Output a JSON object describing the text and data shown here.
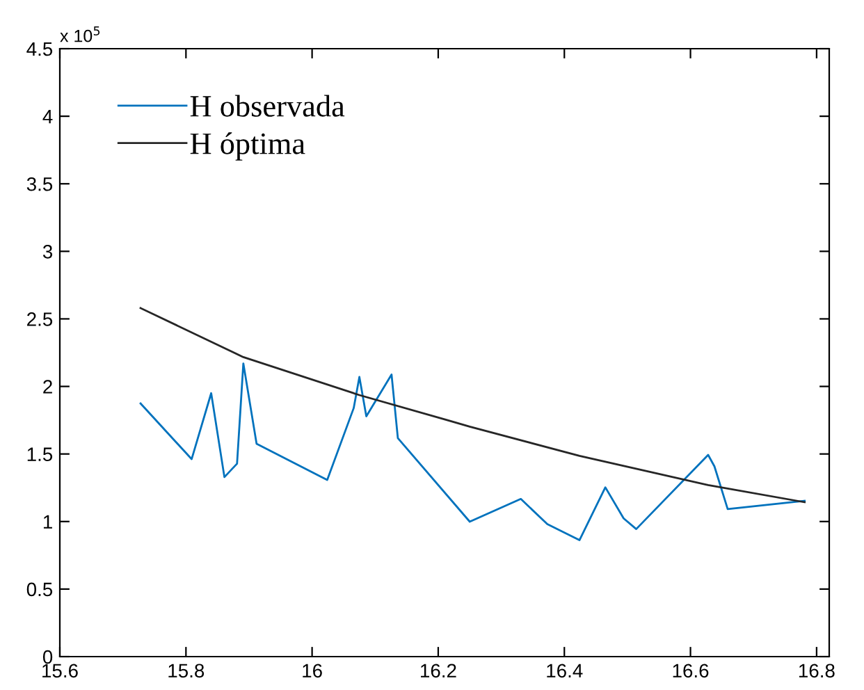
{
  "chart_data": {
    "type": "line",
    "series": [
      {
        "name": "H observada",
        "color": "#0072bd",
        "x": [
          15.728,
          15.809,
          15.84,
          15.861,
          15.881,
          15.891,
          15.912,
          16.024,
          16.066,
          16.075,
          16.086,
          16.126,
          16.136,
          16.25,
          16.331,
          16.373,
          16.424,
          16.465,
          16.494,
          16.514,
          16.628,
          16.638,
          16.659,
          16.781
        ],
        "values": [
          1.874,
          1.462,
          1.95,
          1.329,
          1.428,
          2.17,
          1.576,
          1.308,
          1.84,
          2.07,
          1.779,
          2.088,
          1.617,
          0.999,
          1.167,
          0.981,
          0.862,
          1.253,
          1.023,
          0.944,
          1.493,
          1.408,
          1.092,
          1.153
        ]
      },
      {
        "name": "H óptima",
        "color": "#262626",
        "x": [
          15.728,
          15.891,
          16.075,
          16.212,
          16.25,
          16.424,
          16.628,
          16.781
        ],
        "values": [
          2.58,
          2.217,
          1.936,
          1.754,
          1.702,
          1.486,
          1.27,
          1.143
        ]
      }
    ],
    "xlim": [
      15.6,
      16.82
    ],
    "xticks": [
      15.6,
      15.8,
      16,
      16.2,
      16.4,
      16.6,
      16.8
    ],
    "ylim": [
      0,
      4.5
    ],
    "yticks": [
      0,
      0.5,
      1,
      1.5,
      2,
      2.5,
      3,
      3.5,
      4,
      4.5
    ],
    "annotations": [
      "x 10$^{5}$"
    ],
    "legend": "top left",
    "grid": false,
    "marker": "none",
    "line_style": "solid"
  }
}
